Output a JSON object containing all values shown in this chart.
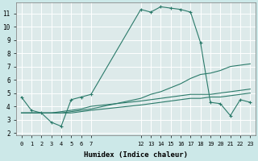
{
  "xlabel": "Humidex (Indice chaleur)",
  "bg_color": "#cce8e8",
  "plot_bg": "#cce8e8",
  "grid_color": "#ffffff",
  "line_color": "#2a7a6a",
  "xlim": [
    -0.5,
    23.5
  ],
  "ylim": [
    1.8,
    11.8
  ],
  "xtick_labels": [
    "0",
    "1",
    "2",
    "3",
    "4",
    "5",
    "6",
    "7",
    "12",
    "13",
    "14",
    "15",
    "16",
    "17",
    "18",
    "19",
    "20",
    "21",
    "22",
    "23"
  ],
  "xtick_positions": [
    0,
    1,
    2,
    3,
    4,
    5,
    6,
    7,
    12,
    13,
    14,
    15,
    16,
    17,
    18,
    19,
    20,
    21,
    22,
    23
  ],
  "yticks": [
    2,
    3,
    4,
    5,
    6,
    7,
    8,
    9,
    10,
    11
  ],
  "s1_x": [
    0,
    1,
    2,
    3,
    4,
    5,
    6,
    7,
    12,
    13,
    14,
    15,
    16,
    17,
    18,
    19,
    20,
    21,
    22,
    23
  ],
  "s1_y": [
    4.7,
    3.7,
    3.5,
    2.8,
    2.5,
    4.5,
    4.7,
    4.9,
    11.3,
    11.1,
    11.5,
    11.4,
    11.3,
    11.1,
    8.8,
    4.3,
    4.2,
    3.3,
    4.5,
    4.3
  ],
  "s2_x": [
    0,
    1,
    2,
    3,
    4,
    5,
    6,
    7,
    12,
    13,
    14,
    15,
    16,
    17,
    18,
    19,
    20,
    21,
    22,
    23
  ],
  "s2_y": [
    3.5,
    3.5,
    3.5,
    3.5,
    3.5,
    3.6,
    3.7,
    3.8,
    4.6,
    4.9,
    5.1,
    5.4,
    5.7,
    6.1,
    6.4,
    6.5,
    6.7,
    7.0,
    7.1,
    7.2
  ],
  "s3_x": [
    0,
    1,
    2,
    3,
    4,
    5,
    6,
    7,
    12,
    13,
    14,
    15,
    16,
    17,
    18,
    19,
    20,
    21,
    22,
    23
  ],
  "s3_y": [
    3.5,
    3.5,
    3.5,
    3.5,
    3.5,
    3.5,
    3.6,
    3.7,
    4.1,
    4.2,
    4.3,
    4.4,
    4.5,
    4.6,
    4.6,
    4.7,
    4.7,
    4.8,
    4.9,
    5.0
  ],
  "s4_x": [
    0,
    1,
    2,
    3,
    4,
    5,
    6,
    7,
    12,
    13,
    14,
    15,
    16,
    17,
    18,
    19,
    20,
    21,
    22,
    23
  ],
  "s4_y": [
    3.5,
    3.5,
    3.5,
    3.5,
    3.6,
    3.7,
    3.8,
    4.0,
    4.4,
    4.5,
    4.6,
    4.7,
    4.8,
    4.9,
    4.9,
    4.9,
    5.0,
    5.1,
    5.2,
    5.3
  ]
}
